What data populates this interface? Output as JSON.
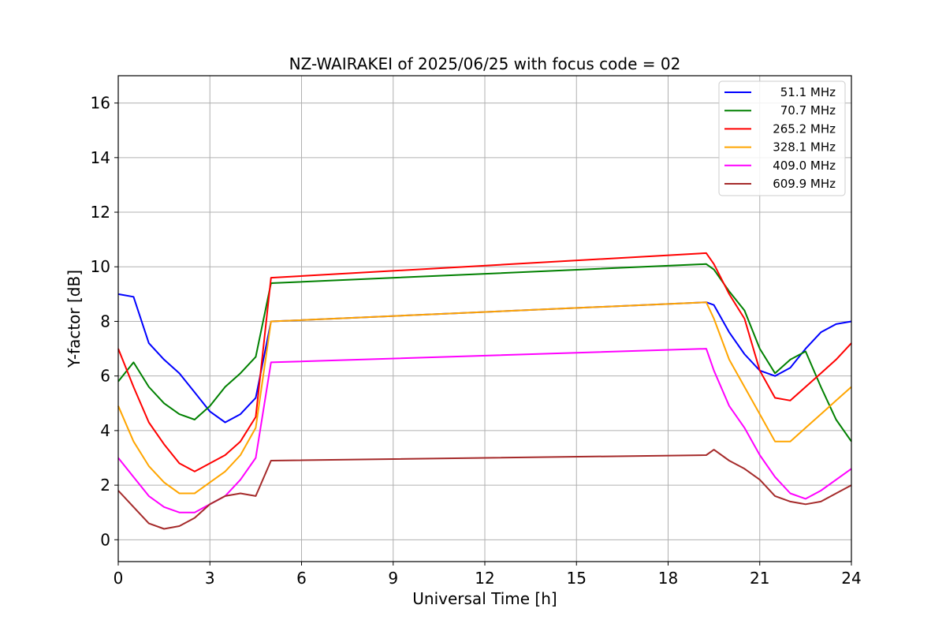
{
  "chart_data": {
    "type": "line",
    "title": "NZ-WAIRAKEI of 2025/06/25 with focus code = 02",
    "xlabel": "Universal Time [h]",
    "ylabel": "Y-factor [dB]",
    "xlim": [
      0,
      24
    ],
    "ylim": [
      -0.8,
      17
    ],
    "xticks": [
      0,
      3,
      6,
      9,
      12,
      15,
      18,
      21,
      24
    ],
    "yticks": [
      0,
      2,
      4,
      6,
      8,
      10,
      12,
      14,
      16
    ],
    "grid": true,
    "legend_position": "top-right",
    "series": [
      {
        "name": "51.1 MHz",
        "color": "#0000ff",
        "points": [
          [
            0.0,
            9.0
          ],
          [
            0.5,
            8.9
          ],
          [
            1.0,
            7.2
          ],
          [
            1.5,
            6.6
          ],
          [
            2.0,
            6.1
          ],
          [
            2.5,
            5.4
          ],
          [
            3.0,
            4.7
          ],
          [
            3.5,
            4.3
          ],
          [
            4.0,
            4.6
          ],
          [
            4.5,
            5.2
          ],
          [
            5.0,
            8.0
          ],
          [
            19.25,
            8.7
          ],
          [
            19.5,
            8.6
          ],
          [
            20.0,
            7.6
          ],
          [
            20.5,
            6.8
          ],
          [
            21.0,
            6.2
          ],
          [
            21.5,
            6.0
          ],
          [
            22.0,
            6.3
          ],
          [
            22.5,
            7.0
          ],
          [
            23.0,
            7.6
          ],
          [
            23.5,
            7.9
          ],
          [
            24.0,
            8.0
          ]
        ]
      },
      {
        "name": "70.7 MHz",
        "color": "#008000",
        "points": [
          [
            0.0,
            5.8
          ],
          [
            0.5,
            6.5
          ],
          [
            1.0,
            5.6
          ],
          [
            1.5,
            5.0
          ],
          [
            2.0,
            4.6
          ],
          [
            2.5,
            4.4
          ],
          [
            3.0,
            4.9
          ],
          [
            3.5,
            5.6
          ],
          [
            4.0,
            6.1
          ],
          [
            4.5,
            6.7
          ],
          [
            5.0,
            9.4
          ],
          [
            19.25,
            10.1
          ],
          [
            19.5,
            9.9
          ],
          [
            20.0,
            9.1
          ],
          [
            20.5,
            8.4
          ],
          [
            21.0,
            7.0
          ],
          [
            21.5,
            6.1
          ],
          [
            22.0,
            6.6
          ],
          [
            22.5,
            6.9
          ],
          [
            23.0,
            5.6
          ],
          [
            23.5,
            4.4
          ],
          [
            24.0,
            3.6
          ]
        ]
      },
      {
        "name": "265.2 MHz",
        "color": "#ff0000",
        "points": [
          [
            0.0,
            7.0
          ],
          [
            0.5,
            5.6
          ],
          [
            1.0,
            4.3
          ],
          [
            1.5,
            3.5
          ],
          [
            2.0,
            2.8
          ],
          [
            2.5,
            2.5
          ],
          [
            3.0,
            2.8
          ],
          [
            3.5,
            3.1
          ],
          [
            4.0,
            3.6
          ],
          [
            4.5,
            4.5
          ],
          [
            5.0,
            9.6
          ],
          [
            19.25,
            10.5
          ],
          [
            19.5,
            10.1
          ],
          [
            20.0,
            9.0
          ],
          [
            20.5,
            8.1
          ],
          [
            21.0,
            6.2
          ],
          [
            21.5,
            5.2
          ],
          [
            22.0,
            5.1
          ],
          [
            22.5,
            5.6
          ],
          [
            23.0,
            6.1
          ],
          [
            23.5,
            6.6
          ],
          [
            24.0,
            7.2
          ]
        ]
      },
      {
        "name": "328.1 MHz",
        "color": "#ffa500",
        "points": [
          [
            0.0,
            4.9
          ],
          [
            0.5,
            3.6
          ],
          [
            1.0,
            2.7
          ],
          [
            1.5,
            2.1
          ],
          [
            2.0,
            1.7
          ],
          [
            2.5,
            1.7
          ],
          [
            3.0,
            2.1
          ],
          [
            3.5,
            2.5
          ],
          [
            4.0,
            3.1
          ],
          [
            4.5,
            4.1
          ],
          [
            5.0,
            8.0
          ],
          [
            19.25,
            8.7
          ],
          [
            19.5,
            8.1
          ],
          [
            20.0,
            6.6
          ],
          [
            20.5,
            5.6
          ],
          [
            21.0,
            4.6
          ],
          [
            21.5,
            3.6
          ],
          [
            22.0,
            3.6
          ],
          [
            22.5,
            4.1
          ],
          [
            23.0,
            4.6
          ],
          [
            23.5,
            5.1
          ],
          [
            24.0,
            5.6
          ]
        ]
      },
      {
        "name": "409.0 MHz",
        "color": "#ff00ff",
        "points": [
          [
            0.0,
            3.0
          ],
          [
            0.5,
            2.3
          ],
          [
            1.0,
            1.6
          ],
          [
            1.5,
            1.2
          ],
          [
            2.0,
            1.0
          ],
          [
            2.5,
            1.0
          ],
          [
            3.0,
            1.3
          ],
          [
            3.5,
            1.6
          ],
          [
            4.0,
            2.2
          ],
          [
            4.5,
            3.0
          ],
          [
            5.0,
            6.5
          ],
          [
            19.25,
            7.0
          ],
          [
            19.5,
            6.2
          ],
          [
            20.0,
            4.9
          ],
          [
            20.5,
            4.1
          ],
          [
            21.0,
            3.1
          ],
          [
            21.5,
            2.3
          ],
          [
            22.0,
            1.7
          ],
          [
            22.5,
            1.5
          ],
          [
            23.0,
            1.8
          ],
          [
            23.5,
            2.2
          ],
          [
            24.0,
            2.6
          ]
        ]
      },
      {
        "name": "609.9 MHz",
        "color": "#a52a2a",
        "points": [
          [
            0.0,
            1.8
          ],
          [
            0.5,
            1.2
          ],
          [
            1.0,
            0.6
          ],
          [
            1.5,
            0.4
          ],
          [
            2.0,
            0.5
          ],
          [
            2.5,
            0.8
          ],
          [
            3.0,
            1.3
          ],
          [
            3.5,
            1.6
          ],
          [
            4.0,
            1.7
          ],
          [
            4.5,
            1.6
          ],
          [
            5.0,
            2.9
          ],
          [
            19.25,
            3.1
          ],
          [
            19.5,
            3.3
          ],
          [
            20.0,
            2.9
          ],
          [
            20.5,
            2.6
          ],
          [
            21.0,
            2.2
          ],
          [
            21.5,
            1.6
          ],
          [
            22.0,
            1.4
          ],
          [
            22.5,
            1.3
          ],
          [
            23.0,
            1.4
          ],
          [
            23.5,
            1.7
          ],
          [
            24.0,
            2.0
          ]
        ]
      }
    ]
  }
}
